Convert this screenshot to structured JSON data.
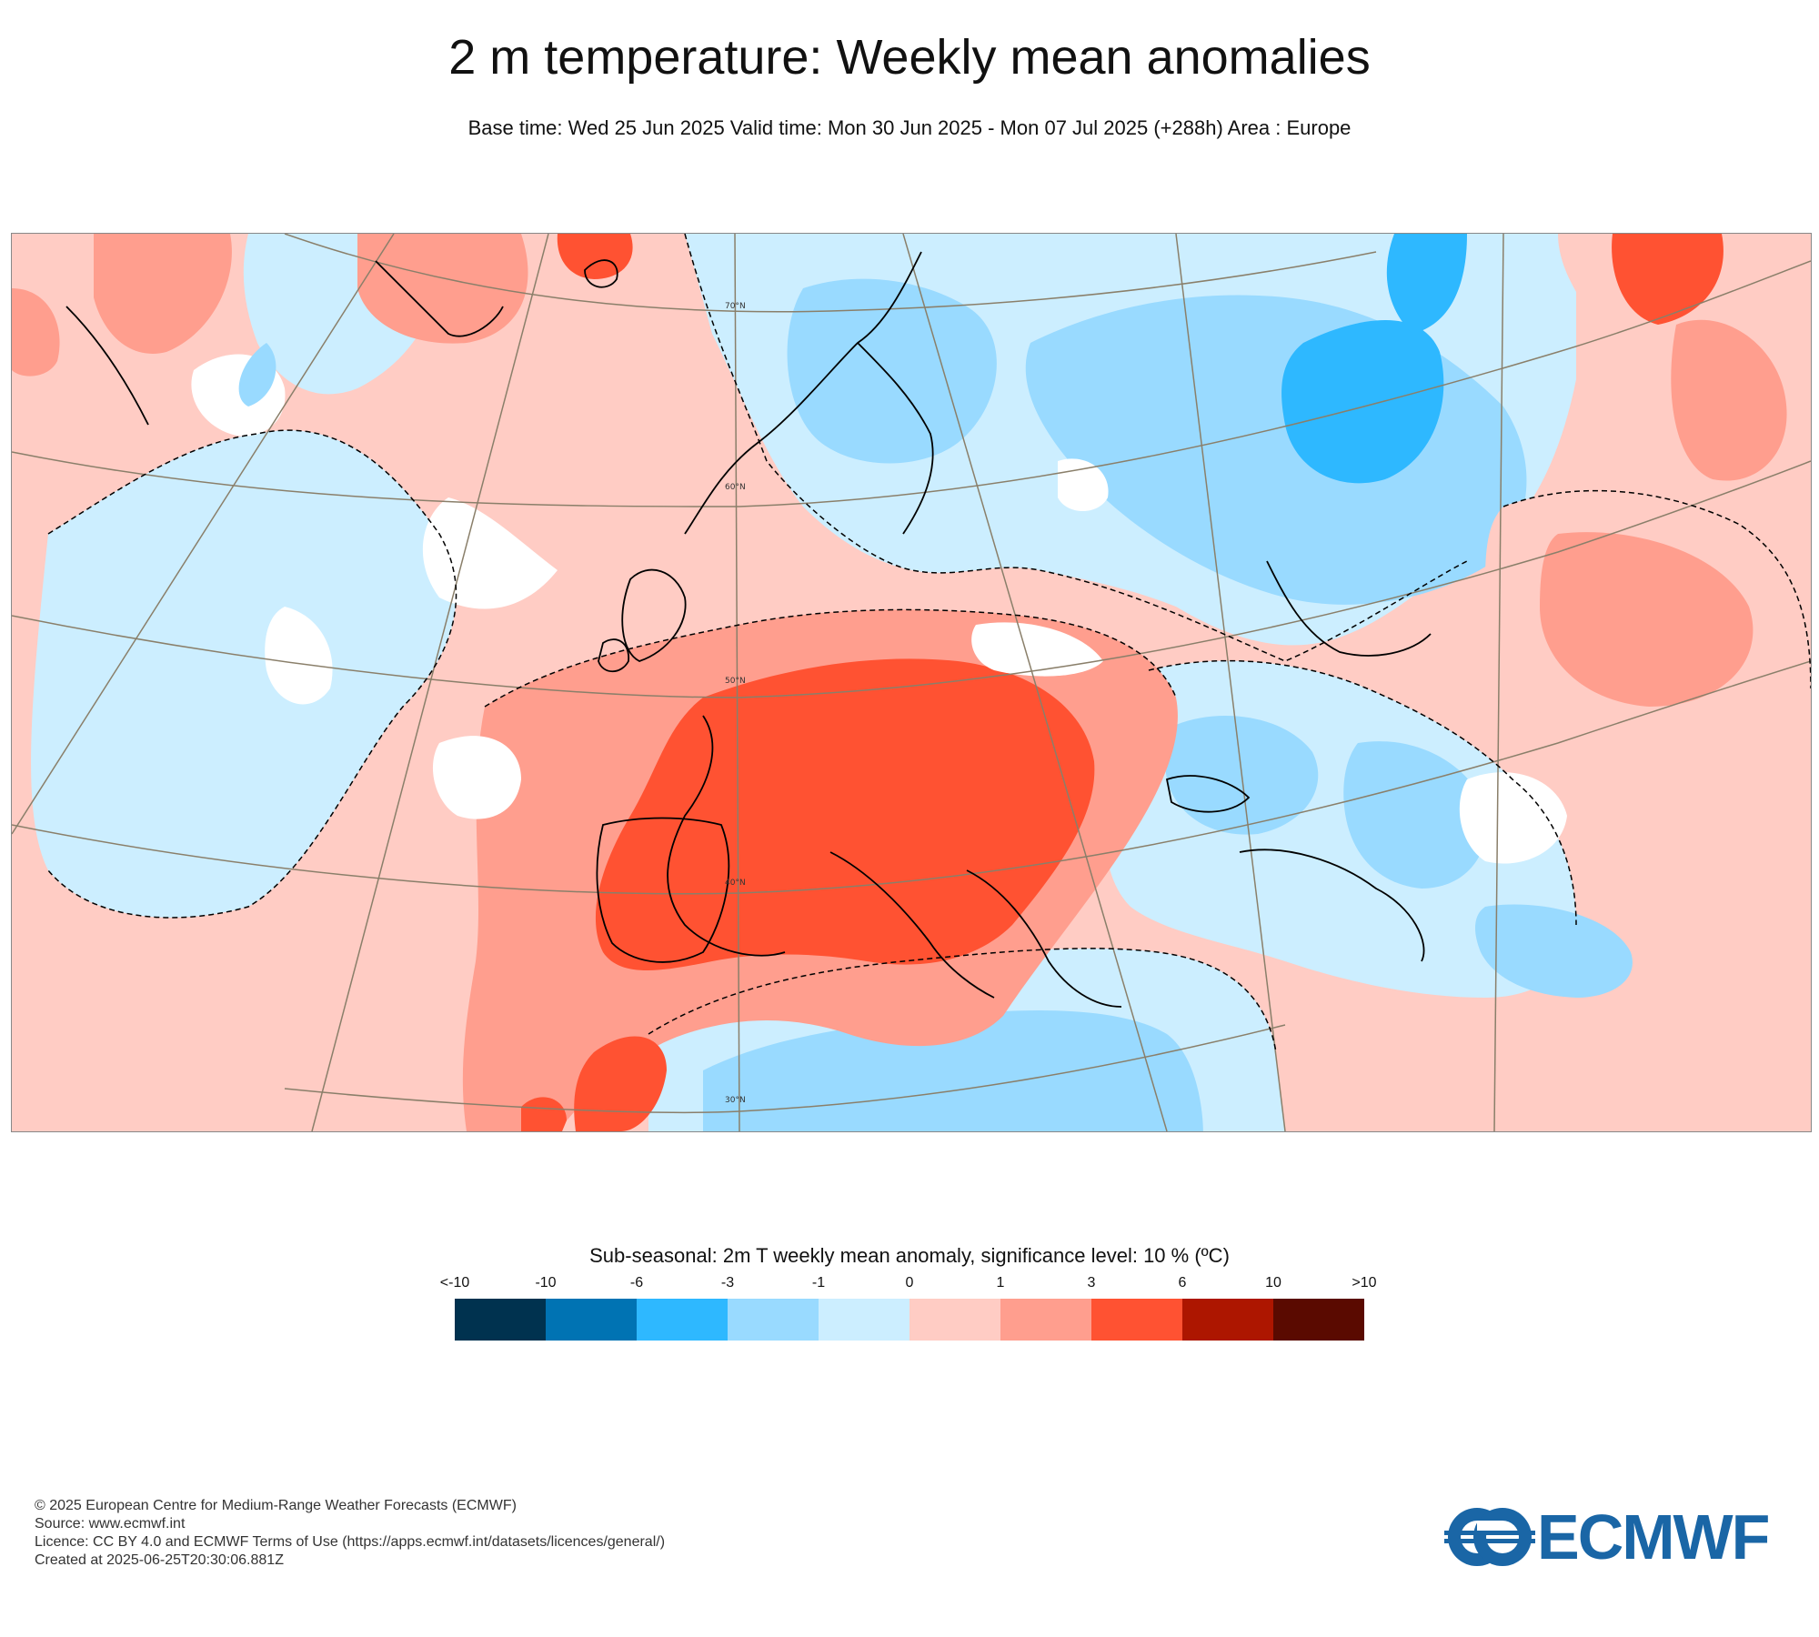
{
  "header": {
    "title": "2 m temperature: Weekly mean anomalies",
    "subtitle": "Base time: Wed 25 Jun 2025 Valid time: Mon 30 Jun 2025 - Mon 07 Jul 2025 (+288h) Area : Europe"
  },
  "map": {
    "region": "Europe",
    "latitude_labels": [
      "70°N",
      "60°N",
      "50°N",
      "40°N",
      "30°N"
    ]
  },
  "legend": {
    "title": "Sub-seasonal: 2m T weekly mean anomaly, significance level: 10 % (ºC)",
    "labels": [
      "<-10",
      "-10",
      "-6",
      "-3",
      "-1",
      "0",
      "1",
      "3",
      "6",
      "10",
      ">10"
    ],
    "colors": [
      "#00324f",
      "#0073b3",
      "#2eb8ff",
      "#99daff",
      "#cceeff",
      "#ffccc4",
      "#ff9e8e",
      "#ff5232",
      "#ad1600",
      "#5a0a00"
    ]
  },
  "colors": {
    "land_outline": "#000000",
    "graticule": "#8a7f6a"
  },
  "footer": {
    "copyright": "© 2025 European Centre for Medium-Range Weather Forecasts (ECMWF)",
    "source": "Source: www.ecmwf.int",
    "licence": "Licence: CC BY 4.0 and ECMWF Terms of Use (https://apps.ecmwf.int/datasets/licences/general/)",
    "created": "Created at 2025-06-25T20:30:06.881Z"
  },
  "logo": {
    "text": "ECMWF"
  }
}
